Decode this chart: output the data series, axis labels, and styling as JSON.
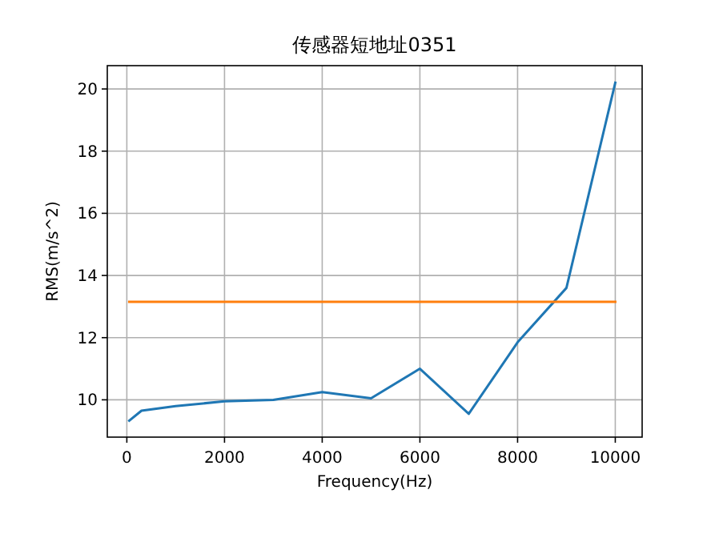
{
  "chart_data": {
    "type": "line",
    "title": "传感器短地址0351",
    "xlabel": "Frequency(Hz)",
    "ylabel": "RMS(m/s^2)",
    "series": [
      {
        "color": "#1f77b4",
        "x": [
          50,
          300,
          1000,
          2000,
          3000,
          4000,
          5000,
          6000,
          7000,
          8000,
          9000,
          10000
        ],
        "values": [
          9.33,
          9.65,
          9.8,
          9.95,
          10.0,
          10.25,
          10.05,
          11.0,
          9.55,
          11.85,
          13.6,
          20.2
        ]
      },
      {
        "color": "#ff7f0e",
        "x": [
          50,
          10000
        ],
        "values": [
          13.15,
          13.15
        ]
      }
    ],
    "xlim": [
      -400,
      10550
    ],
    "ylim": [
      8.8,
      20.75
    ],
    "xticks": [
      0,
      2000,
      4000,
      6000,
      8000,
      10000
    ],
    "yticks": [
      10,
      12,
      14,
      16,
      18,
      20
    ],
    "grid": true
  }
}
